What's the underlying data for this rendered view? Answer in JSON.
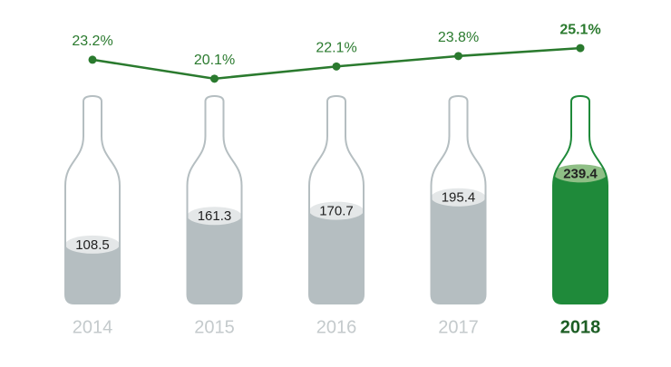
{
  "chart_data": [
    {
      "type": "bar",
      "categories": [
        "2014",
        "2015",
        "2016",
        "2017",
        "2018"
      ],
      "values": [
        108.5,
        161.3,
        170.7,
        195.4,
        239.4
      ],
      "colors": [
        "#b5bec1",
        "#b5bec1",
        "#b5bec1",
        "#b5bec1",
        "#1f8a3a"
      ],
      "label_colors": [
        "#c4cacc",
        "#c4cacc",
        "#c4cacc",
        "#c4cacc",
        "#1d5e25"
      ],
      "ylim": [
        0,
        400
      ]
    },
    {
      "type": "line",
      "values": [
        23.2,
        20.1,
        22.1,
        23.8,
        25.1
      ],
      "value_labels": [
        "23.2%",
        "20.1%",
        "22.1%",
        "23.8%",
        "25.1%"
      ],
      "color": "#2a7a2e",
      "ylim": [
        10,
        30
      ]
    }
  ]
}
